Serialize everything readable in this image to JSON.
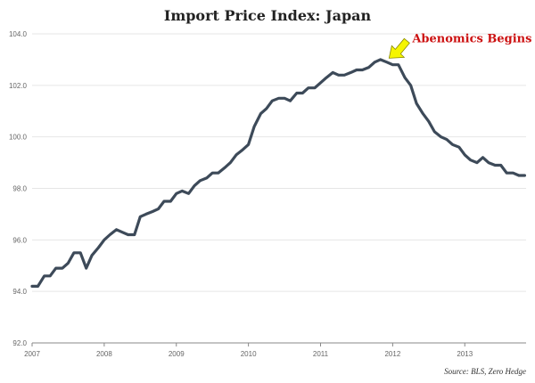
{
  "chart_data": {
    "type": "line",
    "title": "Import Price Index: Japan",
    "xlabel": "",
    "ylabel": "",
    "ylim": [
      92.0,
      104.0
    ],
    "xlim": [
      2007.0,
      2013.85
    ],
    "y_ticks": [
      "92.0",
      "94.0",
      "96.0",
      "98.0",
      "100.0",
      "102.0",
      "104.0"
    ],
    "x_ticks": [
      "2007",
      "2008",
      "2009",
      "2010",
      "2011",
      "2012",
      "2013"
    ],
    "grid": true,
    "line_color": "#3d4a59",
    "series": [
      {
        "name": "",
        "x": [
          2007.0,
          2007.08,
          2007.17,
          2007.25,
          2007.33,
          2007.42,
          2007.5,
          2007.58,
          2007.67,
          2007.75,
          2007.83,
          2007.92,
          2008.0,
          2008.08,
          2008.17,
          2008.25,
          2008.33,
          2008.42,
          2008.5,
          2008.58,
          2008.67,
          2008.75,
          2008.83,
          2008.92,
          2009.0,
          2009.08,
          2009.17,
          2009.25,
          2009.33,
          2009.42,
          2009.5,
          2009.58,
          2009.67,
          2009.75,
          2009.83,
          2009.92,
          2010.0,
          2010.08,
          2010.17,
          2010.25,
          2010.33,
          2010.42,
          2010.5,
          2010.58,
          2010.67,
          2010.75,
          2010.83,
          2010.92,
          2011.0,
          2011.08,
          2011.17,
          2011.25,
          2011.33,
          2011.42,
          2011.5,
          2011.58,
          2011.67,
          2011.75,
          2011.83,
          2011.92,
          2012.0,
          2012.08,
          2012.17,
          2012.25,
          2012.33,
          2012.42,
          2012.5,
          2012.58,
          2012.67,
          2012.75,
          2012.83,
          2012.92,
          2013.0,
          2013.08,
          2013.17,
          2013.25,
          2013.33,
          2013.42,
          2013.5,
          2013.58,
          2013.67,
          2013.75,
          2013.83
        ],
        "values": [
          94.2,
          94.2,
          94.6,
          94.6,
          94.9,
          94.9,
          95.1,
          95.5,
          95.5,
          94.9,
          95.4,
          95.7,
          96.0,
          96.2,
          96.4,
          96.3,
          96.2,
          96.2,
          96.9,
          97.0,
          97.1,
          97.2,
          97.5,
          97.5,
          97.8,
          97.9,
          97.8,
          98.1,
          98.3,
          98.4,
          98.6,
          98.6,
          98.8,
          99.0,
          99.3,
          99.5,
          99.7,
          100.4,
          100.9,
          101.1,
          101.4,
          101.5,
          101.5,
          101.4,
          101.7,
          101.7,
          101.9,
          101.9,
          102.1,
          102.3,
          102.5,
          102.4,
          102.4,
          102.5,
          102.6,
          102.6,
          102.7,
          102.9,
          103.0,
          102.9,
          102.8,
          102.8,
          102.3,
          102.0,
          101.3,
          100.9,
          100.6,
          100.2,
          100.0,
          99.9,
          99.7,
          99.6,
          99.3,
          99.1,
          99.0,
          99.2,
          99.0,
          98.9,
          98.9,
          98.6,
          98.6,
          98.5,
          98.5
        ]
      }
    ],
    "annotation": {
      "text": "Abenomics Begins",
      "x": 2011.95,
      "y": 102.95,
      "color": "#cc1111",
      "arrow_color": "#f5f500"
    },
    "source": "Source: BLS, Zero Hedge"
  }
}
